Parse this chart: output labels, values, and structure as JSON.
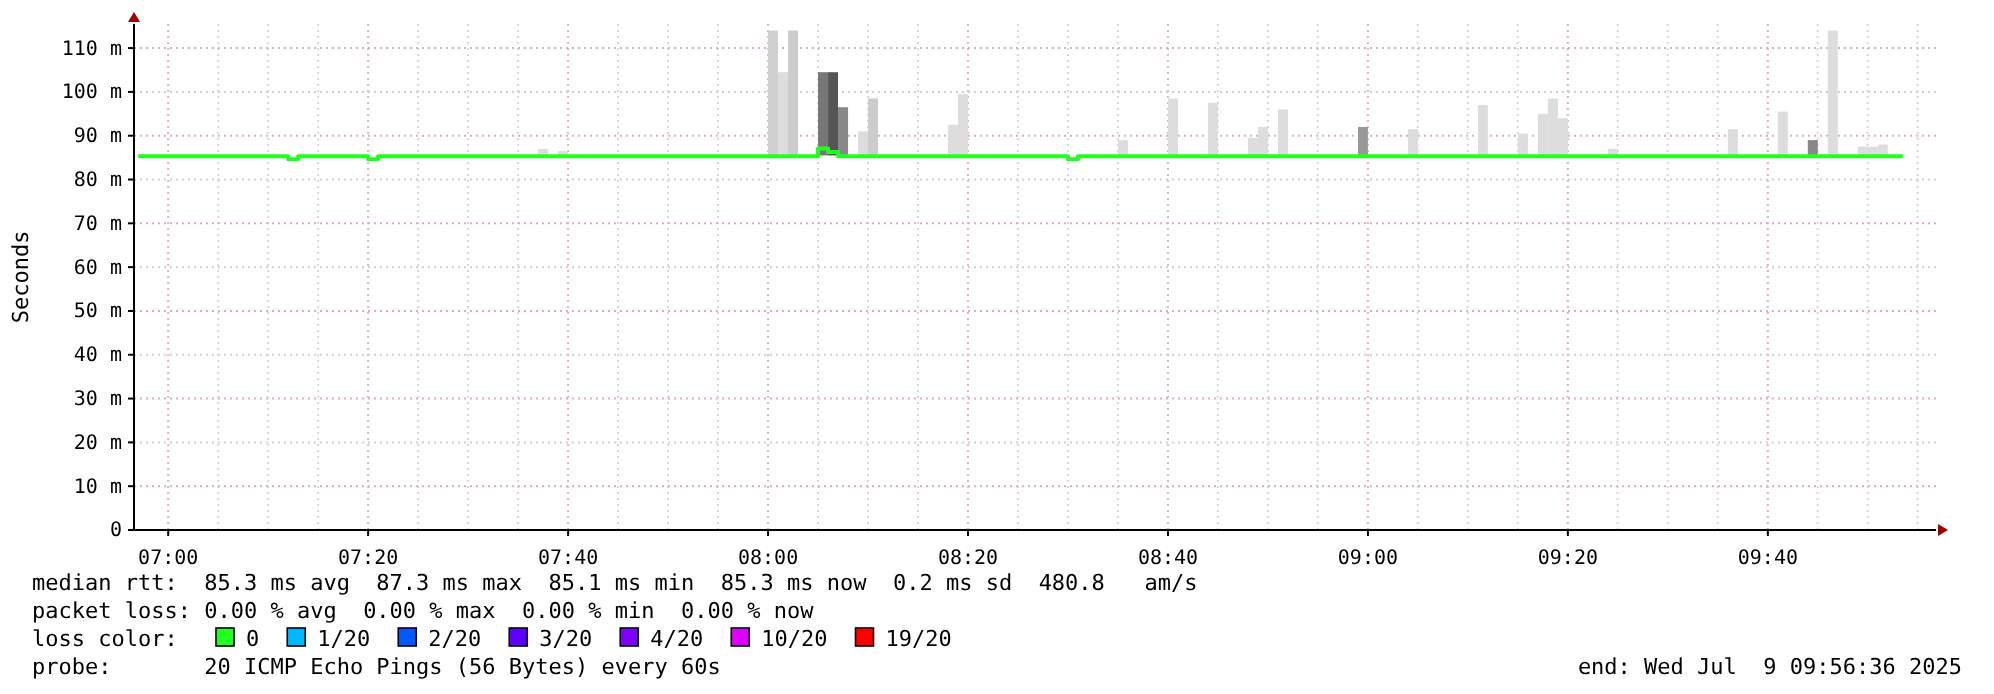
{
  "chart_data": {
    "type": "step",
    "ylabel": "Seconds",
    "legend_title": "loss color:",
    "legend": "bottom",
    "grid": true,
    "xlim": [
      6.943,
      9.947
    ],
    "ylim": [
      0,
      115.5
    ],
    "xticks": [
      {
        "value": 7,
        "label": "07:00"
      },
      {
        "value": 7.3333,
        "label": "07:20"
      },
      {
        "value": 7.6667,
        "label": "07:40"
      },
      {
        "value": 8,
        "label": "08:00"
      },
      {
        "value": 8.3333,
        "label": "08:20"
      },
      {
        "value": 8.6667,
        "label": "08:40"
      },
      {
        "value": 9,
        "label": "09:00"
      },
      {
        "value": 9.3333,
        "label": "09:20"
      },
      {
        "value": 9.6667,
        "label": "09:40"
      }
    ],
    "yticks": [
      0,
      {
        "value": 10,
        "label": "10 m"
      },
      {
        "value": 20,
        "label": "20 m"
      },
      {
        "value": 30,
        "label": "30 m"
      },
      {
        "value": 40,
        "label": "40 m"
      },
      {
        "value": 50,
        "label": "50 m"
      },
      {
        "value": 60,
        "label": "60 m"
      },
      {
        "value": 70,
        "label": "70 m"
      },
      {
        "value": 80,
        "label": "80 m"
      },
      {
        "value": 90,
        "label": "90 m"
      },
      {
        "value": 100,
        "label": "100 m"
      },
      {
        "value": 110,
        "label": "110 m"
      }
    ],
    "series": [
      {
        "type": "bar",
        "x": [
          7.6167,
          7.65,
          8,
          8.0167,
          8.0333,
          8.0833,
          8.1,
          8.1167,
          8.15,
          8.1667,
          8.3,
          8.3167,
          8.5833,
          8.6667,
          8.7333,
          8.8,
          8.8167,
          8.85,
          8.9833,
          9.0667,
          9.1833,
          9.25,
          9.2833,
          9.3,
          9.3167,
          9.4,
          9.6,
          9.6833,
          9.7333,
          9.7667,
          9.8167,
          9.8333,
          9.85
        ],
        "base": [
          85.5,
          85.5,
          85.5,
          85.5,
          85.5,
          85.5,
          85.5,
          85.5,
          85.5,
          85.5,
          85.5,
          85.5,
          85.5,
          85.5,
          85.5,
          85.5,
          85.5,
          85.5,
          85.5,
          85.5,
          85.5,
          85.5,
          85.5,
          85.5,
          85.5,
          85.5,
          85.5,
          85.5,
          85.5,
          85.5,
          85.5,
          85.5,
          85.5
        ],
        "values": [
          1.5,
          1,
          28.5,
          19,
          28.5,
          19,
          19,
          11,
          5.5,
          13,
          7,
          14,
          3.5,
          13,
          12,
          4,
          6.5,
          10.5,
          6.5,
          6,
          11.5,
          5,
          9.5,
          13,
          8.5,
          1.5,
          6,
          10,
          3.5,
          28.5,
          2,
          2,
          2.5
        ],
        "colors": [
          "#dddddd",
          "#dddddd",
          "#d0d0d0",
          "#dddddd",
          "#cccccc",
          "#777777",
          "#555555",
          "#888888",
          "#dddddd",
          "#cccccc",
          "#dddddd",
          "#dddddd",
          "#dddddd",
          "#dddddd",
          "#dddddd",
          "#dddddd",
          "#dddddd",
          "#dddddd",
          "#999999",
          "#dddddd",
          "#dddddd",
          "#dddddd",
          "#dddddd",
          "#dddddd",
          "#dddddd",
          "#dddddd",
          "#dddddd",
          "#dddddd",
          "#888888",
          "#dddddd",
          "#dddddd",
          "#dddddd",
          "#dddddd"
        ]
      },
      {
        "name": "0",
        "color": "#20ff20",
        "x": [
          6.95,
          7.2,
          7.2167,
          7.3333,
          7.35,
          8.0833,
          8.1,
          8.1167,
          8.5,
          8.5167,
          9.8917
        ],
        "values": [
          85.3,
          84.6,
          85.3,
          84.6,
          85.3,
          87.1,
          86.3,
          85.3,
          84.6,
          85.3,
          85.3
        ]
      },
      {
        "name": "1/20",
        "color": "#00b8ff"
      },
      {
        "name": "2/20",
        "color": "#0059ff"
      },
      {
        "name": "3/20",
        "color": "#5e00ff"
      },
      {
        "name": "4/20",
        "color": "#7e00ff"
      },
      {
        "name": "10/20",
        "color": "#dd00ff"
      },
      {
        "name": "19/20",
        "color": "#ff0000"
      }
    ],
    "annotations": [
      "median rtt:  85.3 ms avg  87.3 ms max  85.1 ms min  85.3 ms now  0.2 ms sd  480.8   am/s",
      "packet loss: 0.00 % avg  0.00 % max  0.00 % min  0.00 % now",
      "probe:       20 ICMP Echo Pings (56 Bytes) every 60s",
      "end: Wed Jul  9 09:56:36 2025"
    ]
  }
}
